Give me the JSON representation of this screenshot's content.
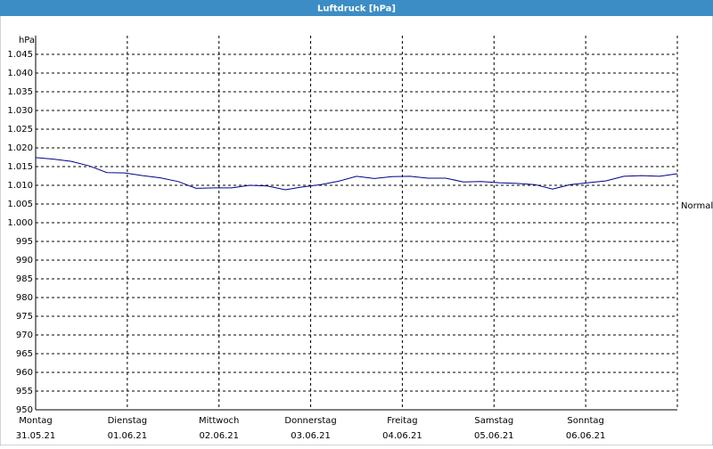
{
  "chart_data": {
    "type": "line",
    "title": "Luftdruck [hPa]",
    "y_unit": "hPa",
    "x_labels": [
      {
        "day": "Montag",
        "date": "31.05.21"
      },
      {
        "day": "Dienstag",
        "date": "01.06.21"
      },
      {
        "day": "Mittwoch",
        "date": "02.06.21"
      },
      {
        "day": "Donnerstag",
        "date": "03.06.21"
      },
      {
        "day": "Freitag",
        "date": "04.06.21"
      },
      {
        "day": "Samstag",
        "date": "05.06.21"
      },
      {
        "day": "Sonntag",
        "date": "06.06.21"
      }
    ],
    "values": [
      1017.4,
      1017.0,
      1016.4,
      1015.2,
      1013.4,
      1013.3,
      1012.6,
      1012.0,
      1011.0,
      1009.2,
      1009.3,
      1009.3,
      1010.0,
      1009.8,
      1008.8,
      1009.6,
      1010.2,
      1011.1,
      1012.4,
      1011.8,
      1012.3,
      1012.4,
      1011.9,
      1011.9,
      1010.9,
      1011.0,
      1010.7,
      1010.5,
      1010.2,
      1009.0,
      1010.2,
      1010.7,
      1011.2,
      1012.4,
      1012.6,
      1012.4,
      1013.1
    ],
    "color": "#00008b",
    "ylim": [
      950,
      1050
    ],
    "yticks": [
      950,
      955,
      960,
      965,
      970,
      975,
      980,
      985,
      990,
      995,
      {
        "value": 1000,
        "label": "1.000"
      },
      {
        "value": 1005,
        "label": "1.005"
      },
      {
        "value": 1010,
        "label": "1.010"
      },
      {
        "value": 1015,
        "label": "1.015"
      },
      {
        "value": 1020,
        "label": "1.020"
      },
      {
        "value": 1025,
        "label": "1.025"
      },
      {
        "value": 1030,
        "label": "1.030"
      },
      {
        "value": 1035,
        "label": "1.035"
      },
      {
        "value": 1040,
        "label": "1.040"
      },
      {
        "value": 1045,
        "label": "1.045"
      }
    ],
    "reference": {
      "label": "Normal",
      "value": 1004.5
    },
    "grid": true
  }
}
